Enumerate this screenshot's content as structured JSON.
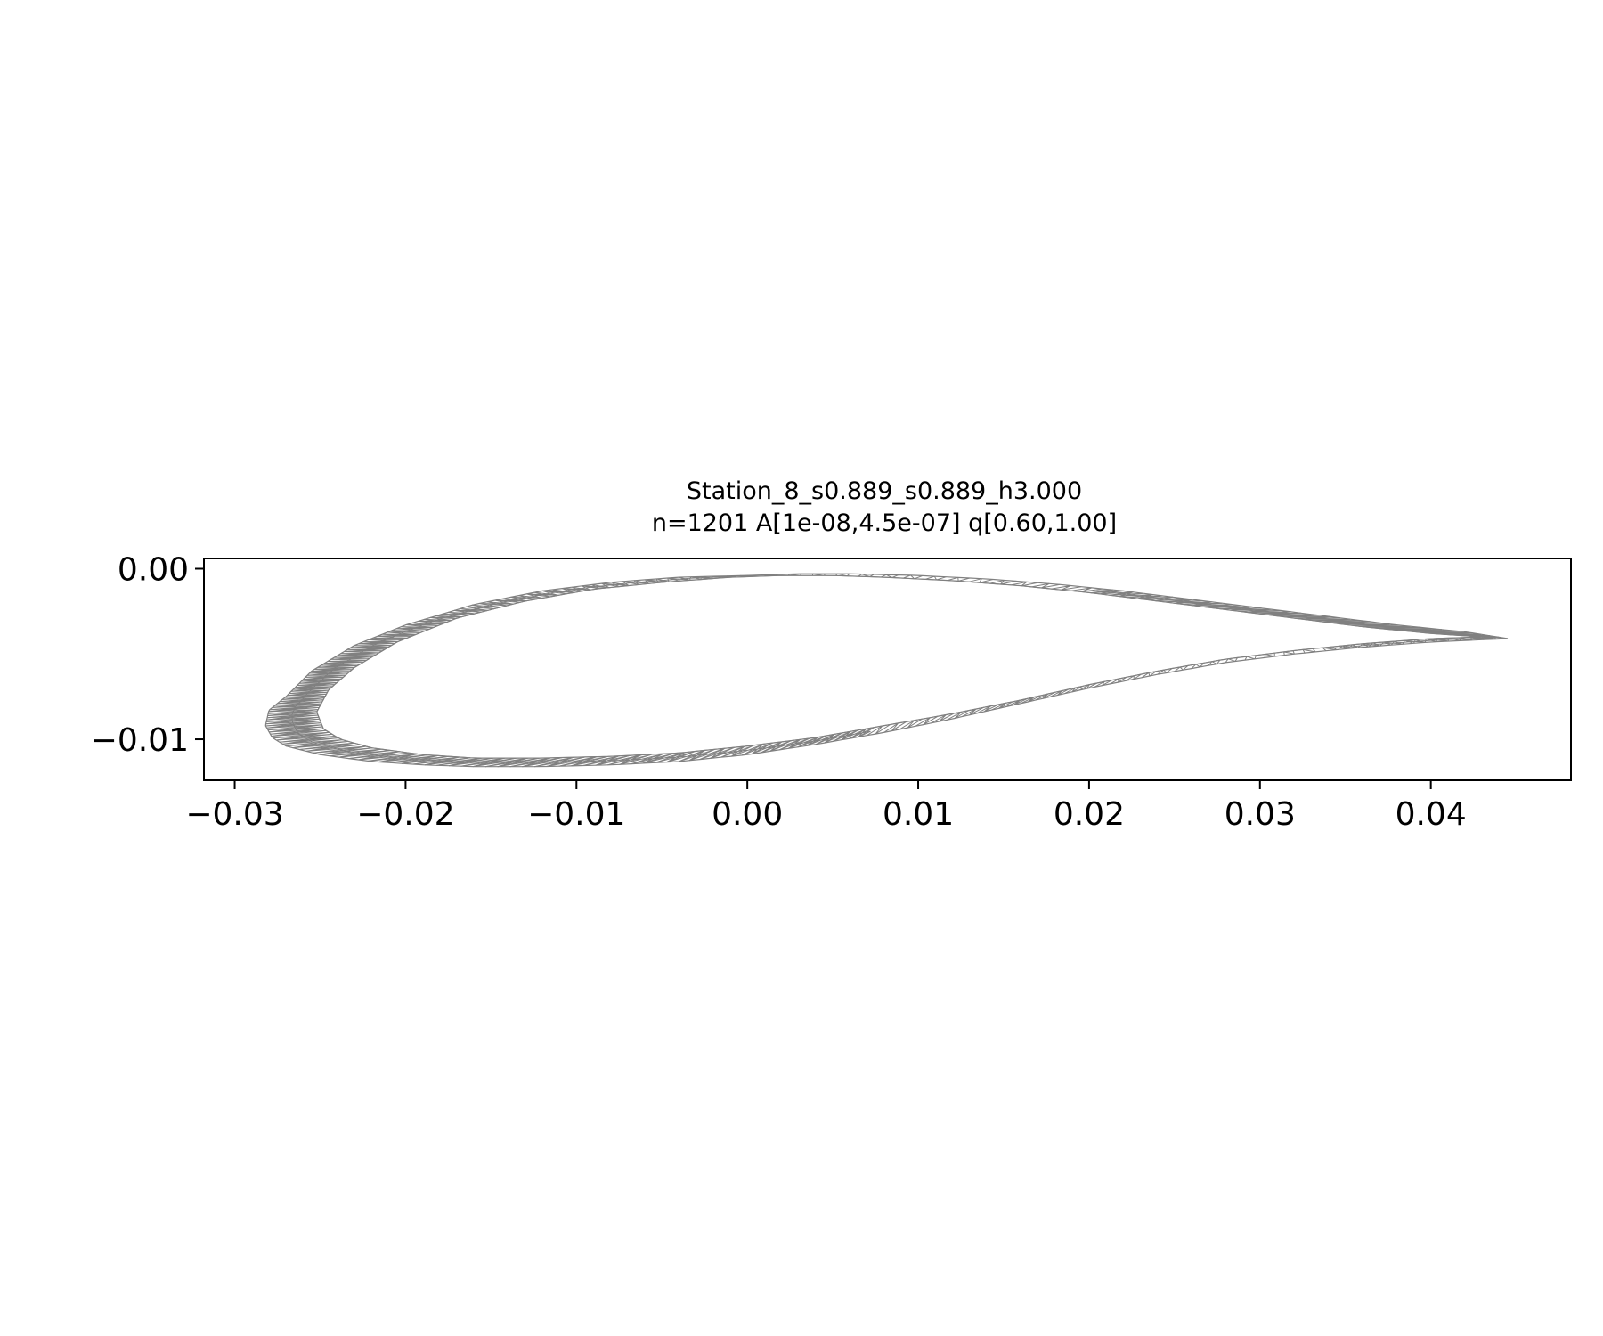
{
  "title_line1": "Station_8_s0.889_s0.889_h3.000",
  "title_line2": "n=1201  A[1e-08,4.5e-07]  q[0.60,1.00]",
  "chart_data": {
    "type": "mesh",
    "xlim": [
      -0.0318,
      0.0482
    ],
    "ylim": [
      -0.0124,
      0.0006
    ],
    "x_ticks": [
      {
        "value": -0.03,
        "label": "−0.03"
      },
      {
        "value": -0.02,
        "label": "−0.02"
      },
      {
        "value": -0.01,
        "label": "−0.01"
      },
      {
        "value": 0.0,
        "label": "0.00"
      },
      {
        "value": 0.01,
        "label": "0.01"
      },
      {
        "value": 0.02,
        "label": "0.02"
      },
      {
        "value": 0.03,
        "label": "0.03"
      },
      {
        "value": 0.04,
        "label": "0.04"
      }
    ],
    "y_ticks": [
      {
        "value": 0.0,
        "label": "0.00"
      },
      {
        "value": -0.01,
        "label": "−0.01"
      }
    ],
    "mesh_color": "#808080",
    "outer_contour": [
      [
        0.0445,
        -0.0041
      ],
      [
        0.042,
        -0.0037
      ],
      [
        0.038,
        -0.0033
      ],
      [
        0.034,
        -0.0028
      ],
      [
        0.03,
        -0.0023
      ],
      [
        0.026,
        -0.0018
      ],
      [
        0.022,
        -0.0013
      ],
      [
        0.018,
        -0.0009
      ],
      [
        0.014,
        -0.0006
      ],
      [
        0.01,
        -0.0004
      ],
      [
        0.006,
        -0.0003
      ],
      [
        0.003,
        -0.0003
      ],
      [
        0.0,
        -0.0004
      ],
      [
        -0.004,
        -0.0005
      ],
      [
        -0.008,
        -0.0008
      ],
      [
        -0.012,
        -0.0013
      ],
      [
        -0.016,
        -0.0021
      ],
      [
        -0.02,
        -0.0033
      ],
      [
        -0.023,
        -0.0045
      ],
      [
        -0.0255,
        -0.006
      ],
      [
        -0.027,
        -0.0075
      ],
      [
        -0.028,
        -0.0083
      ],
      [
        -0.0282,
        -0.0092
      ],
      [
        -0.0278,
        -0.0099
      ],
      [
        -0.027,
        -0.0104
      ],
      [
        -0.025,
        -0.0109
      ],
      [
        -0.022,
        -0.0113
      ],
      [
        -0.019,
        -0.0115
      ],
      [
        -0.016,
        -0.0116
      ],
      [
        -0.012,
        -0.0116
      ],
      [
        -0.008,
        -0.0115
      ],
      [
        -0.004,
        -0.0113
      ],
      [
        0.0,
        -0.0109
      ],
      [
        0.004,
        -0.0103
      ],
      [
        0.008,
        -0.0096
      ],
      [
        0.012,
        -0.0088
      ],
      [
        0.016,
        -0.0079
      ],
      [
        0.02,
        -0.007
      ],
      [
        0.024,
        -0.0062
      ],
      [
        0.028,
        -0.0055
      ],
      [
        0.032,
        -0.005
      ],
      [
        0.036,
        -0.0046
      ],
      [
        0.04,
        -0.0043
      ],
      [
        0.0445,
        -0.0041
      ]
    ],
    "inner_contour": [
      [
        0.043,
        -0.004
      ],
      [
        0.04,
        -0.0038
      ],
      [
        0.036,
        -0.0034
      ],
      [
        0.032,
        -0.0029
      ],
      [
        0.028,
        -0.0024
      ],
      [
        0.024,
        -0.0019
      ],
      [
        0.02,
        -0.0014
      ],
      [
        0.016,
        -0.001
      ],
      [
        0.012,
        -0.0007
      ],
      [
        0.008,
        -0.0005
      ],
      [
        0.005,
        -0.0004
      ],
      [
        0.002,
        -0.0004
      ],
      [
        -0.001,
        -0.0005
      ],
      [
        -0.005,
        -0.0008
      ],
      [
        -0.009,
        -0.0012
      ],
      [
        -0.013,
        -0.0019
      ],
      [
        -0.017,
        -0.0029
      ],
      [
        -0.0205,
        -0.0043
      ],
      [
        -0.023,
        -0.0058
      ],
      [
        -0.0245,
        -0.0071
      ],
      [
        -0.0252,
        -0.0084
      ],
      [
        -0.0248,
        -0.0094
      ],
      [
        -0.0238,
        -0.01
      ],
      [
        -0.022,
        -0.0105
      ],
      [
        -0.019,
        -0.0109
      ],
      [
        -0.016,
        -0.0111
      ],
      [
        -0.012,
        -0.0111
      ],
      [
        -0.008,
        -0.011
      ],
      [
        -0.004,
        -0.0108
      ],
      [
        0.0,
        -0.0104
      ],
      [
        0.004,
        -0.0099
      ],
      [
        0.008,
        -0.0092
      ],
      [
        0.012,
        -0.0085
      ],
      [
        0.016,
        -0.0077
      ],
      [
        0.02,
        -0.0068
      ],
      [
        0.024,
        -0.006
      ],
      [
        0.028,
        -0.0053
      ],
      [
        0.032,
        -0.0048
      ],
      [
        0.036,
        -0.0044
      ],
      [
        0.04,
        -0.0041
      ],
      [
        0.043,
        -0.004
      ]
    ]
  }
}
